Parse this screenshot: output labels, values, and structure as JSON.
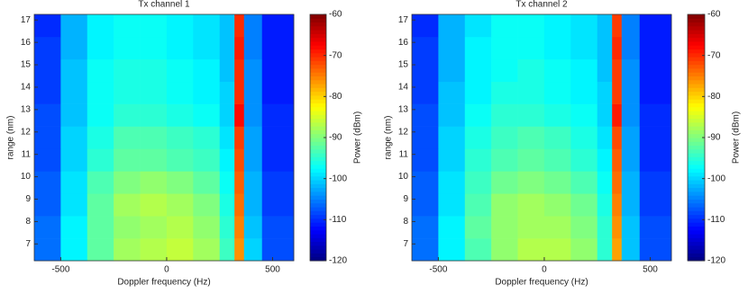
{
  "chart_data": [
    {
      "type": "heatmap",
      "title": "Tx channel 1",
      "xlabel": "Doppler frequency (Hz)",
      "ylabel": "range (nm)",
      "colormap": "jet",
      "xlim": [
        -625,
        600
      ],
      "ylim": [
        6.25,
        17.25
      ],
      "xticks": [
        -500,
        0,
        500
      ],
      "yticks": [
        7,
        8,
        9,
        10,
        11,
        12,
        13,
        14,
        15,
        16,
        17
      ],
      "x_edges": [
        -625,
        -500,
        -375,
        -250,
        -125,
        0,
        125,
        250,
        320,
        365,
        450,
        600
      ],
      "y_edges": [
        6.25,
        7.25,
        8.25,
        9.25,
        10.25,
        11.25,
        12.25,
        13.25,
        14.25,
        15.25,
        16.25,
        17.25
      ],
      "values": [
        [
          -106,
          -98,
          -92,
          -88,
          -87,
          -86,
          -88,
          -94,
          -76,
          -100,
          -108
        ],
        [
          -106,
          -98,
          -92,
          -89,
          -88,
          -87,
          -89,
          -95,
          -75,
          -101,
          -108
        ],
        [
          -107,
          -99,
          -92,
          -88,
          -87,
          -88,
          -90,
          -96,
          -74,
          -102,
          -109
        ],
        [
          -107,
          -99,
          -93,
          -90,
          -89,
          -90,
          -92,
          -97,
          -73,
          -102,
          -109
        ],
        [
          -108,
          -100,
          -95,
          -92,
          -92,
          -93,
          -94,
          -98,
          -72,
          -103,
          -110
        ],
        [
          -108,
          -100,
          -96,
          -93,
          -93,
          -94,
          -95,
          -99,
          -71,
          -103,
          -110
        ],
        [
          -108,
          -101,
          -97,
          -95,
          -95,
          -96,
          -97,
          -100,
          -68,
          -104,
          -110
        ],
        [
          -109,
          -101,
          -97,
          -96,
          -96,
          -97,
          -98,
          -100,
          -70,
          -104,
          -111
        ],
        [
          -109,
          -101,
          -97,
          -96,
          -96,
          -97,
          -98,
          -101,
          -70,
          -104,
          -111
        ],
        [
          -109,
          -102,
          -98,
          -97,
          -97,
          -98,
          -99,
          -101,
          -69,
          -105,
          -111
        ],
        [
          -110,
          -102,
          -98,
          -97,
          -97,
          -98,
          -99,
          -101,
          -70,
          -105,
          -111
        ]
      ],
      "colorbar": {
        "label": "Power (dBm)",
        "lim": [
          -120,
          -60
        ],
        "ticks": [
          -120,
          -110,
          -100,
          -90,
          -80,
          -70,
          -60
        ]
      }
    },
    {
      "type": "heatmap",
      "title": "Tx channel 2",
      "xlabel": "Doppler frequency (Hz)",
      "ylabel": "range (nm)",
      "colormap": "jet",
      "xlim": [
        -625,
        600
      ],
      "ylim": [
        6.25,
        17.25
      ],
      "xticks": [
        -500,
        0,
        500
      ],
      "yticks": [
        7,
        8,
        9,
        10,
        11,
        12,
        13,
        14,
        15,
        16,
        17
      ],
      "x_edges": [
        -625,
        -500,
        -375,
        -250,
        -125,
        0,
        125,
        250,
        320,
        365,
        450,
        600
      ],
      "y_edges": [
        6.25,
        7.25,
        8.25,
        9.25,
        10.25,
        11.25,
        12.25,
        13.25,
        14.25,
        15.25,
        16.25,
        17.25
      ],
      "values": [
        [
          -106,
          -98,
          -93,
          -89,
          -87,
          -87,
          -89,
          -95,
          -77,
          -101,
          -108
        ],
        [
          -106,
          -98,
          -92,
          -89,
          -88,
          -88,
          -90,
          -95,
          -76,
          -101,
          -108
        ],
        [
          -107,
          -99,
          -93,
          -89,
          -88,
          -89,
          -91,
          -96,
          -75,
          -102,
          -109
        ],
        [
          -107,
          -99,
          -94,
          -91,
          -90,
          -91,
          -93,
          -97,
          -74,
          -102,
          -109
        ],
        [
          -108,
          -100,
          -95,
          -93,
          -92,
          -93,
          -95,
          -98,
          -73,
          -103,
          -110
        ],
        [
          -108,
          -100,
          -96,
          -94,
          -93,
          -94,
          -96,
          -99,
          -72,
          -103,
          -110
        ],
        [
          -108,
          -101,
          -97,
          -95,
          -95,
          -96,
          -97,
          -100,
          -69,
          -104,
          -110
        ],
        [
          -109,
          -101,
          -98,
          -96,
          -96,
          -97,
          -98,
          -100,
          -71,
          -104,
          -111
        ],
        [
          -109,
          -102,
          -98,
          -97,
          -96,
          -97,
          -98,
          -101,
          -71,
          -104,
          -111
        ],
        [
          -109,
          -102,
          -98,
          -97,
          -97,
          -98,
          -99,
          -101,
          -70,
          -105,
          -111
        ],
        [
          -110,
          -102,
          -99,
          -97,
          -97,
          -98,
          -99,
          -101,
          -71,
          -105,
          -111
        ]
      ],
      "colorbar": {
        "label": "Power (dBm)",
        "lim": [
          -120,
          -60
        ],
        "ticks": [
          -120,
          -110,
          -100,
          -90,
          -80,
          -70,
          -60
        ]
      }
    }
  ]
}
